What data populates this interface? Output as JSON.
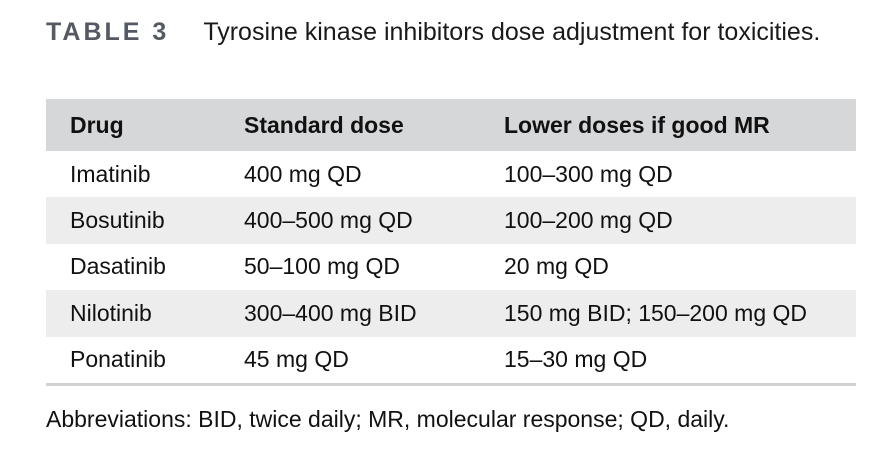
{
  "caption": {
    "label": "TABLE 3",
    "text": "Tyrosine kinase inhibitors dose adjustment for toxicities."
  },
  "table": {
    "headers": [
      "Drug",
      "Standard dose",
      "Lower doses if good MR"
    ],
    "rows": [
      [
        "Imatinib",
        "400 mg QD",
        "100–300 mg QD"
      ],
      [
        "Bosutinib",
        "400–500 mg QD",
        "100–200 mg QD"
      ],
      [
        "Dasatinib",
        "50–100 mg QD",
        "20 mg QD"
      ],
      [
        "Nilotinib",
        "300–400 mg BID",
        "150 mg BID; 150–200 mg QD"
      ],
      [
        "Ponatinib",
        "45 mg QD",
        "15–30 mg QD"
      ]
    ]
  },
  "footnote": "Abbreviations: BID, twice daily; MR, molecular response; QD, daily.",
  "colors": {
    "header_bg": "#d6d7d9",
    "stripe_bg": "#ededee",
    "label_color": "#555a62"
  }
}
